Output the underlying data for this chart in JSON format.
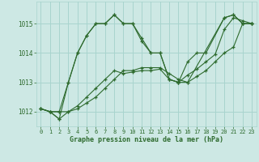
{
  "background_color": "#cde8e4",
  "grid_color": "#a8d4ce",
  "line_color": "#2d6a2d",
  "marker_color": "#2d6a2d",
  "xlabel": "Graphe pression niveau de la mer (hPa)",
  "xlabel_color": "#2d6a2d",
  "tick_color": "#2d6a2d",
  "ylim": [
    1011.5,
    1015.75
  ],
  "xlim": [
    -0.5,
    23.5
  ],
  "yticks": [
    1012,
    1013,
    1014,
    1015
  ],
  "xticks": [
    0,
    1,
    2,
    3,
    4,
    5,
    6,
    7,
    8,
    9,
    10,
    11,
    12,
    13,
    14,
    15,
    16,
    17,
    18,
    19,
    20,
    21,
    22,
    23
  ],
  "series": [
    {
      "x": [
        0,
        1,
        2,
        3,
        4,
        5,
        6,
        7,
        8,
        9,
        10,
        11,
        12,
        13,
        14,
        15,
        16,
        20,
        21,
        22,
        23
      ],
      "y": [
        1012.1,
        1012.0,
        1012.0,
        1013.0,
        1014.0,
        1014.6,
        1015.0,
        1015.0,
        1015.3,
        1015.0,
        1015.0,
        1014.5,
        1014.0,
        1014.0,
        1013.1,
        1013.0,
        1013.0,
        1015.2,
        1015.3,
        1015.0,
        1015.0
      ]
    },
    {
      "x": [
        0,
        1,
        2,
        3,
        4,
        5,
        6,
        7,
        8,
        9,
        10,
        11,
        12,
        13,
        14,
        15,
        16,
        17,
        18,
        19,
        20,
        21,
        22,
        23
      ],
      "y": [
        1012.1,
        1012.0,
        1012.0,
        1012.0,
        1012.1,
        1012.3,
        1012.5,
        1012.8,
        1013.1,
        1013.4,
        1013.4,
        1013.5,
        1013.5,
        1013.5,
        1013.3,
        1013.1,
        1013.0,
        1013.2,
        1013.4,
        1013.7,
        1014.0,
        1014.2,
        1015.0,
        1015.0
      ]
    },
    {
      "x": [
        0,
        1,
        2,
        3,
        4,
        5,
        6,
        7,
        8,
        9,
        10,
        11,
        12,
        13,
        14,
        15,
        16,
        17,
        18,
        19,
        20,
        21,
        22,
        23
      ],
      "y": [
        1012.1,
        1012.0,
        1011.75,
        1012.0,
        1012.2,
        1012.5,
        1012.8,
        1013.1,
        1013.4,
        1013.3,
        1013.35,
        1013.4,
        1013.4,
        1013.45,
        1013.1,
        1013.0,
        1013.25,
        1013.45,
        1013.7,
        1013.95,
        1014.8,
        1015.2,
        1015.1,
        1015.0
      ]
    },
    {
      "x": [
        0,
        1,
        2,
        3,
        4,
        5,
        6,
        7,
        8,
        9,
        10,
        11,
        12,
        13,
        14,
        15,
        16,
        17,
        18,
        20,
        21,
        22,
        23
      ],
      "y": [
        1012.1,
        1012.0,
        1011.75,
        1013.0,
        1014.0,
        1014.6,
        1015.0,
        1015.0,
        1015.3,
        1015.0,
        1015.0,
        1014.4,
        1014.0,
        1014.0,
        1013.1,
        1013.0,
        1013.7,
        1014.0,
        1014.0,
        1015.2,
        1015.3,
        1015.0,
        1015.0
      ]
    }
  ]
}
